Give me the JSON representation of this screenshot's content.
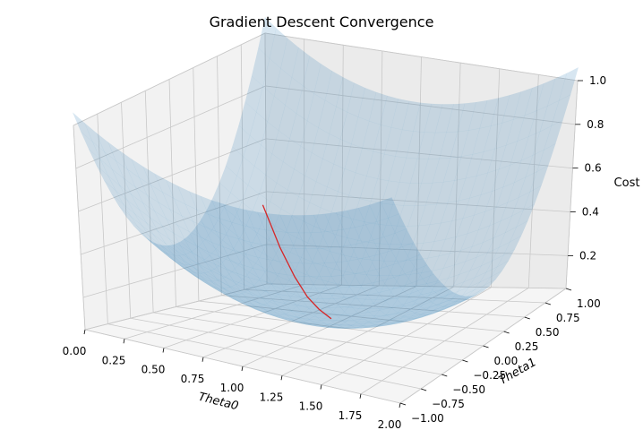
{
  "chart_data": {
    "type": "surface",
    "title": "Gradient Descent Convergence",
    "xlabel": "Theta0",
    "ylabel": "Theta1",
    "zlabel": "Cost",
    "xlim": [
      0,
      2
    ],
    "ylim": [
      -1,
      1
    ],
    "zlim": [
      0.05,
      1.0
    ],
    "x_ticks": [
      "0.00",
      "0.25",
      "0.50",
      "0.75",
      "1.00",
      "1.25",
      "1.50",
      "1.75",
      "2.00"
    ],
    "y_ticks": [
      "−1.00",
      "−0.75",
      "−0.50",
      "−0.25",
      "0.00",
      "0.25",
      "0.50",
      "0.75",
      "1.00"
    ],
    "z_ticks": [
      "0.2",
      "0.4",
      "0.6",
      "0.8",
      "1.0"
    ],
    "grid": true,
    "surface": {
      "description_x_range": [
        0,
        2
      ],
      "description_y_range": [
        -1,
        1
      ],
      "shape": "paraboloid bowl with minimum near (1.0, 0.0)",
      "color": "#1f77b4",
      "alpha": 0.3
    },
    "path": {
      "color": "#d62728",
      "points": [
        {
          "theta0": 0.25,
          "theta1": 0.55,
          "cost": 0.42
        },
        {
          "theta0": 0.45,
          "theta1": 0.4,
          "cost": 0.28
        },
        {
          "theta0": 0.62,
          "theta1": 0.27,
          "cost": 0.19
        },
        {
          "theta0": 0.76,
          "theta1": 0.17,
          "cost": 0.13
        },
        {
          "theta0": 0.88,
          "theta1": 0.09,
          "cost": 0.1
        },
        {
          "theta0": 1.0,
          "theta1": 0.02,
          "cost": 0.08
        }
      ]
    }
  }
}
